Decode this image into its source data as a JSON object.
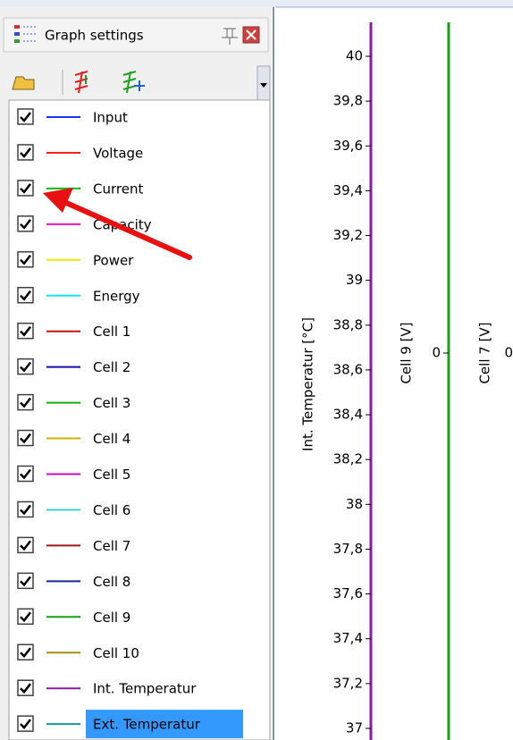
{
  "panel": {
    "title": "Graph settings",
    "items": [
      {
        "name": "Input",
        "color": "#2233ff",
        "checked": true
      },
      {
        "name": "Voltage",
        "color": "#ff2020",
        "checked": true
      },
      {
        "name": "Current",
        "color": "#00c000",
        "checked": true
      },
      {
        "name": "Capacity",
        "color": "#ff10b0",
        "checked": true
      },
      {
        "name": "Power",
        "color": "#e8e800",
        "checked": true
      },
      {
        "name": "Energy",
        "color": "#10e8e8",
        "checked": true
      },
      {
        "name": "Cell 1",
        "color": "#c81010",
        "checked": true
      },
      {
        "name": "Cell 2",
        "color": "#1010a8",
        "checked": true
      },
      {
        "name": "Cell 3",
        "color": "#10b010",
        "checked": true
      },
      {
        "name": "Cell 4",
        "color": "#c8b400",
        "checked": true
      },
      {
        "name": "Cell 5",
        "color": "#c010c0",
        "checked": true
      },
      {
        "name": "Cell 6",
        "color": "#40d0d0",
        "checked": true
      },
      {
        "name": "Cell 7",
        "color": "#a01818",
        "checked": true
      },
      {
        "name": "Cell 8",
        "color": "#182898",
        "checked": true
      },
      {
        "name": "Cell 9",
        "color": "#18a018",
        "checked": true
      },
      {
        "name": "Cell 10",
        "color": "#a09018",
        "checked": true
      },
      {
        "name": "Int. Temperatur",
        "color": "#9018a8",
        "checked": true
      },
      {
        "name": "Ext. Temperatur",
        "color": "#189898",
        "checked": true,
        "selected": true
      }
    ]
  },
  "axes": [
    {
      "title": "Int. Temperatur [°C]",
      "color": "#9018a8",
      "ticks": [
        "40",
        "39,8",
        "39,6",
        "39,4",
        "39,2",
        "39",
        "38,8",
        "38,6",
        "38,4",
        "38,2",
        "38",
        "37,8",
        "37,6",
        "37,4",
        "37,2",
        "37"
      ]
    },
    {
      "title": "Cell 9 [V]",
      "color": "#18a018",
      "ticks": [
        "0"
      ]
    },
    {
      "title": "Cell 7 [V]",
      "color": "#a01818",
      "ticks": [
        "0"
      ]
    }
  ]
}
